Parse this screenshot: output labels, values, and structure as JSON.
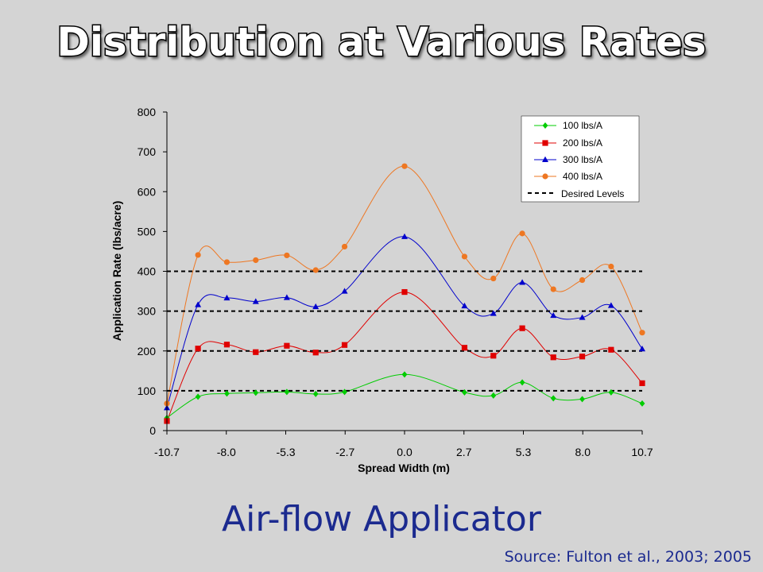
{
  "slide": {
    "title": "Distribution at Various Rates",
    "subtitle": "Air-flow Applicator",
    "source": "Source: Fulton et al., 2003; 2005"
  },
  "chart_data": {
    "type": "line",
    "xlabel": "Spread Width (m)",
    "ylabel": "Application Rate (lbs/acre)",
    "ylim": [
      0,
      800
    ],
    "xlim": [
      -10.7,
      10.7
    ],
    "x_tick_labels": [
      "-10.7",
      "-8.0",
      "-5.3",
      "-2.7",
      "0.0",
      "2.7",
      "5.3",
      "8.0",
      "10.7"
    ],
    "y_tick_labels": [
      "0",
      "100",
      "200",
      "300",
      "400",
      "500",
      "600",
      "700",
      "800"
    ],
    "grid": false,
    "legend_position": "top-right",
    "x": [
      -10.7,
      -9.3,
      -8.0,
      -6.7,
      -5.3,
      -4.0,
      -2.7,
      0.0,
      2.7,
      4.0,
      5.3,
      6.7,
      8.0,
      9.3,
      10.7
    ],
    "series": [
      {
        "name": "100 lbs/A",
        "color": "#00cc00",
        "marker": "diamond",
        "values": [
          32,
          85,
          93,
          95,
          97,
          92,
          97,
          141,
          96,
          88,
          121,
          81,
          79,
          96,
          68
        ]
      },
      {
        "name": "200 lbs/A",
        "color": "#e00000",
        "marker": "square",
        "values": [
          24,
          206,
          216,
          197,
          213,
          196,
          215,
          348,
          208,
          188,
          257,
          184,
          186,
          203,
          119
        ]
      },
      {
        "name": "300 lbs/A",
        "color": "#0000cc",
        "marker": "triangle",
        "values": [
          57,
          316,
          333,
          324,
          334,
          311,
          350,
          487,
          313,
          294,
          372,
          289,
          284,
          314,
          205
        ]
      },
      {
        "name": "400 lbs/A",
        "color": "#ee7722",
        "marker": "circle",
        "values": [
          68,
          441,
          423,
          428,
          440,
          403,
          462,
          664,
          437,
          382,
          495,
          355,
          378,
          412,
          246
        ]
      }
    ],
    "reference_lines": {
      "name": "Desired Levels",
      "style": "dashed",
      "color": "#000000",
      "values": [
        100,
        200,
        300,
        400
      ]
    }
  }
}
